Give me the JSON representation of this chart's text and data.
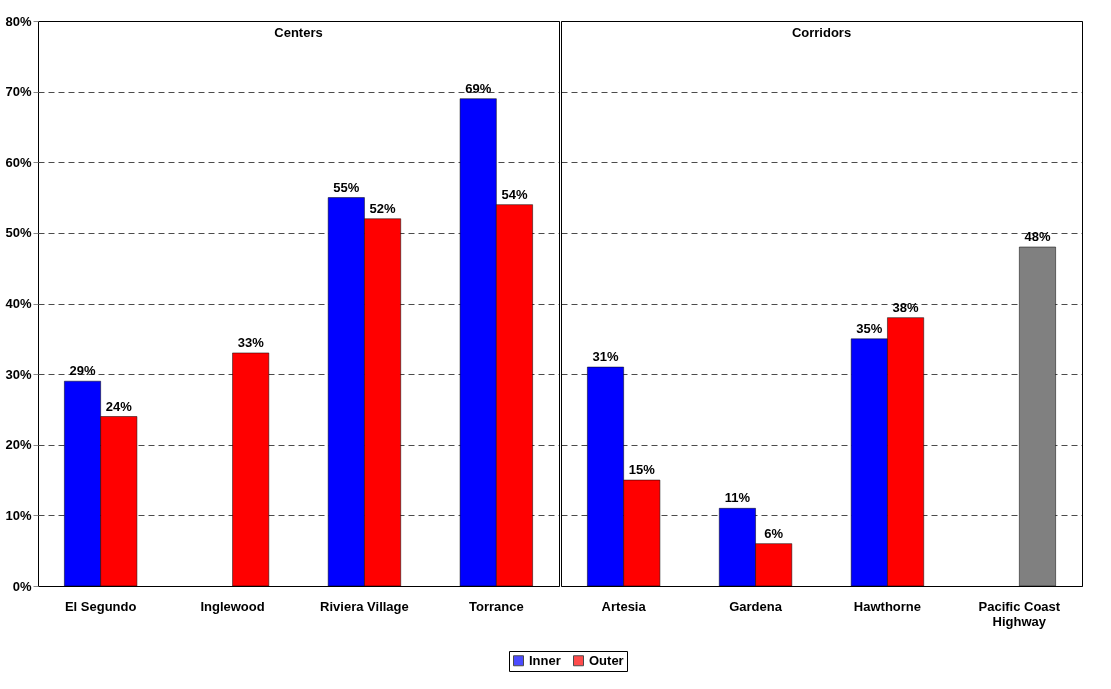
{
  "chart_data": [
    {
      "type": "bar",
      "title": "Centers",
      "categories": [
        "El Segundo",
        "Inglewood",
        "Riviera Village",
        "Torrance"
      ],
      "series": [
        {
          "name": "Inner",
          "color": "#0000ff",
          "values": [
            29,
            null,
            55,
            69
          ],
          "value_labels": [
            "29%",
            null,
            "55%",
            "69%"
          ]
        },
        {
          "name": "Outer",
          "color": "#ff0000",
          "values": [
            24,
            33,
            52,
            54
          ],
          "value_labels": [
            "24%",
            "33%",
            "52%",
            "54%"
          ]
        }
      ],
      "ylim": [
        0,
        80
      ],
      "yticks": [
        {
          "value": 0,
          "label": "0%"
        },
        {
          "value": 10,
          "label": "10%"
        },
        {
          "value": 20,
          "label": "20%"
        },
        {
          "value": 30,
          "label": "30%"
        },
        {
          "value": 40,
          "label": "40%"
        },
        {
          "value": 50,
          "label": "50%"
        },
        {
          "value": 60,
          "label": "60%"
        },
        {
          "value": 70,
          "label": "70%"
        },
        {
          "value": 80,
          "label": "80%"
        }
      ],
      "grid": "y",
      "legend": "bottom"
    },
    {
      "type": "bar",
      "title": "Corridors",
      "categories": [
        "Artesia",
        "Gardena",
        "Hawthorne",
        "Pacific Coast Highway"
      ],
      "series": [
        {
          "name": "Inner",
          "color": "#0000ff",
          "values": [
            31,
            11,
            35,
            null
          ],
          "value_labels": [
            "31%",
            "11%",
            "35%",
            null
          ]
        },
        {
          "name": "Outer",
          "color": "#ff0000",
          "colors": [
            "#ff0000",
            "#ff0000",
            "#ff0000",
            "#808080"
          ],
          "values": [
            15,
            6,
            38,
            48
          ],
          "value_labels": [
            "15%",
            "6%",
            "38%",
            "48%"
          ]
        }
      ],
      "ylim": [
        0,
        80
      ],
      "yticks": [
        {
          "value": 0,
          "label": null
        },
        {
          "value": 10,
          "label": null
        },
        {
          "value": 20,
          "label": null
        },
        {
          "value": 30,
          "label": null
        },
        {
          "value": 40,
          "label": null
        },
        {
          "value": 50,
          "label": null
        },
        {
          "value": 60,
          "label": null
        },
        {
          "value": 70,
          "label": null
        },
        {
          "value": 80,
          "label": null
        }
      ],
      "grid": "y",
      "tick_labels": "x",
      "legend": "bottom"
    }
  ]
}
